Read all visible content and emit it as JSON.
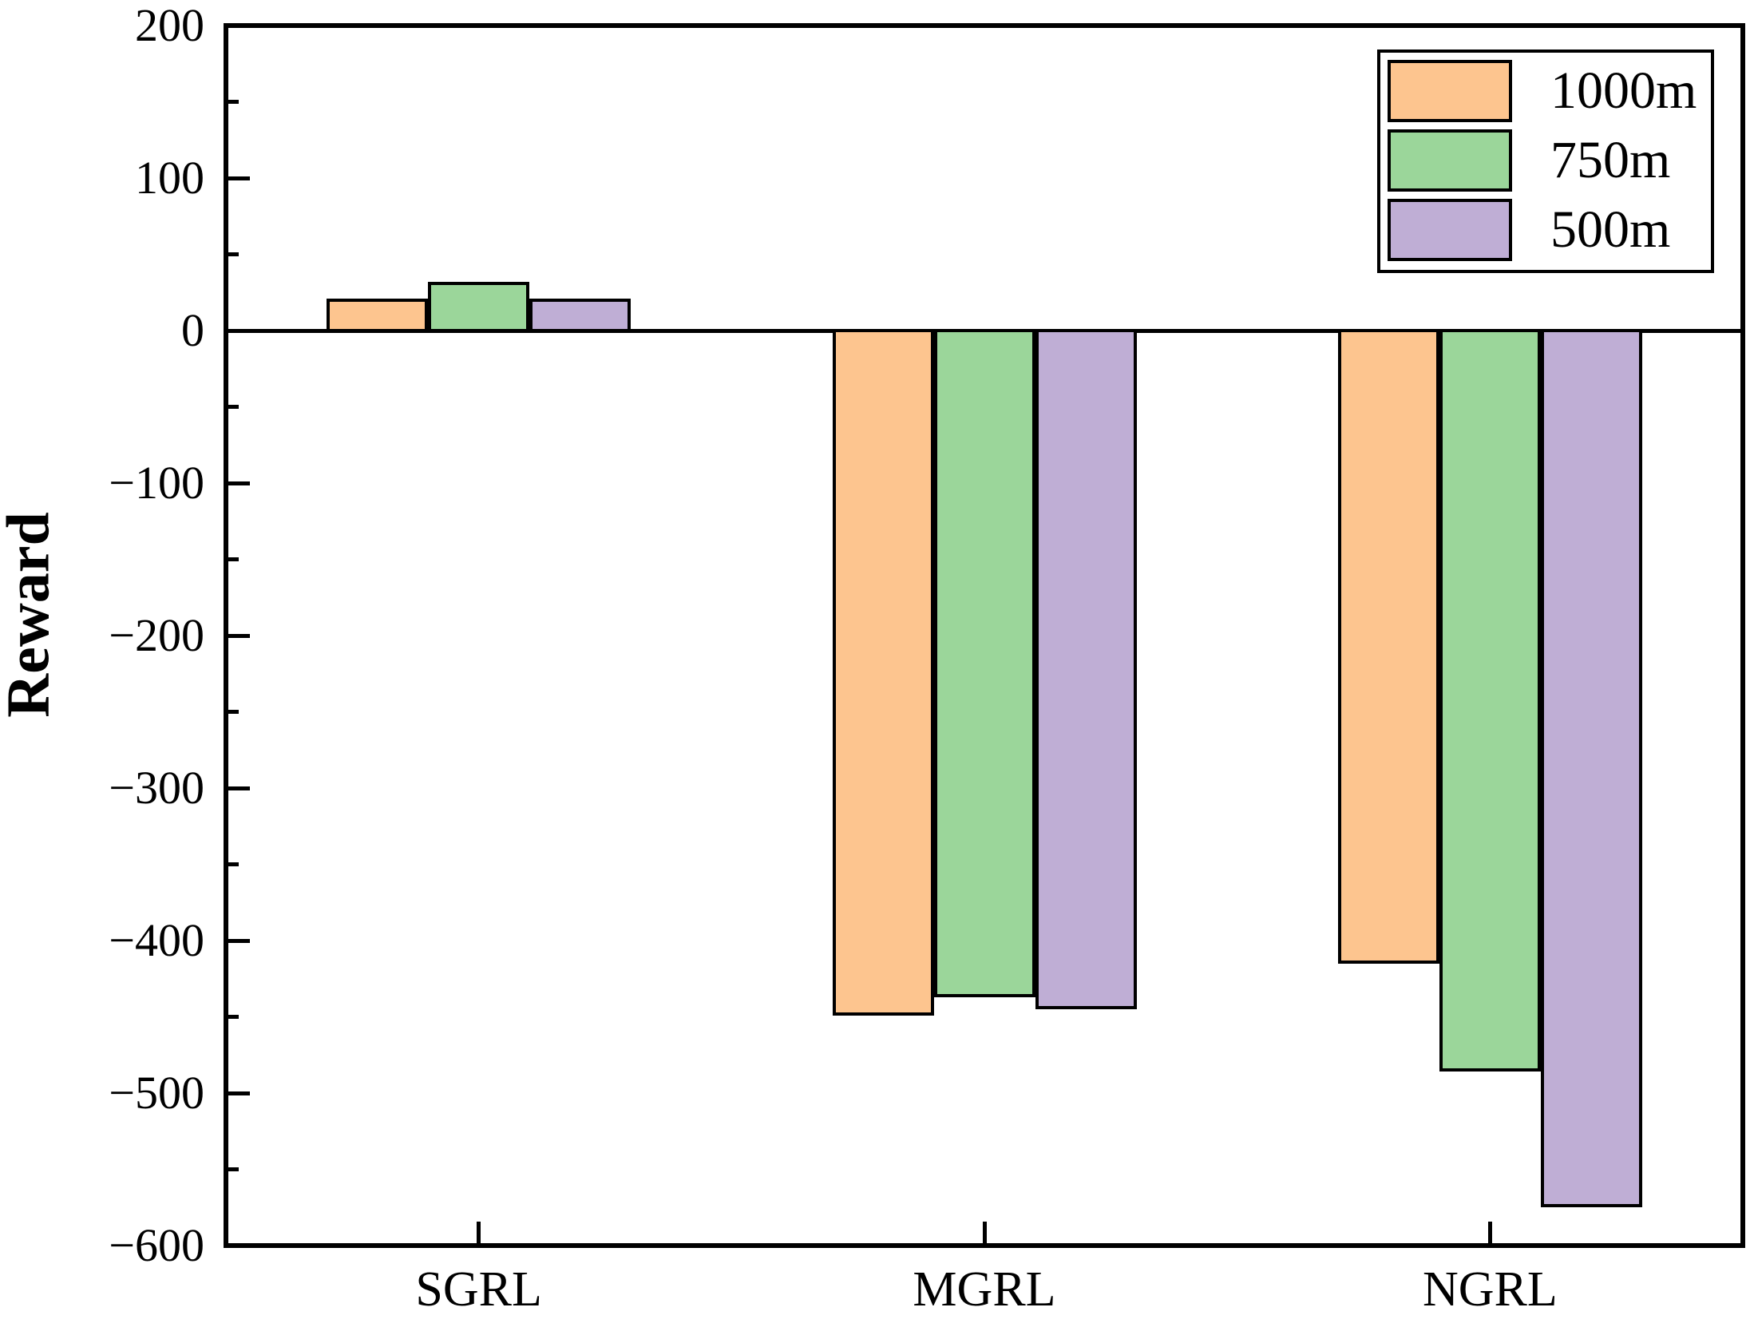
{
  "chart_data": {
    "type": "bar",
    "title": "",
    "xlabel": "",
    "ylabel": "Reward",
    "categories": [
      "SGRL",
      "MGRL",
      "NGRL"
    ],
    "series": [
      {
        "name": "1000m",
        "color": "#FDC58F",
        "values": [
          21,
          -449,
          -415
        ]
      },
      {
        "name": "750m",
        "color": "#9BD69A",
        "values": [
          32,
          -437,
          -486
        ]
      },
      {
        "name": "500m",
        "color": "#BFAED5",
        "values": [
          21,
          -445,
          -575
        ]
      }
    ],
    "ylim": [
      -600,
      200
    ],
    "ytick_interval": 100,
    "minor_tick_interval": 50,
    "ytick_labels": [
      "200",
      "100",
      "0",
      "−100",
      "−200",
      "−300",
      "−400",
      "−500",
      "−600"
    ],
    "grid": false,
    "legend_position": "upper right",
    "bar_edge_color": "#000000",
    "axis_color": "#000000"
  }
}
